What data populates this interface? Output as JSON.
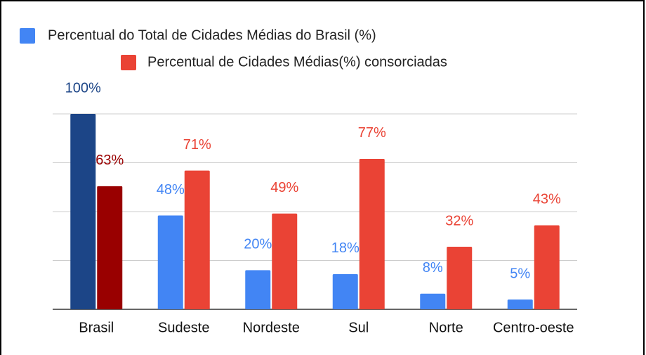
{
  "chart_data": {
    "type": "bar",
    "categories": [
      "Brasil",
      "Sudeste",
      "Nordeste",
      "Sul",
      "Norte",
      "Centro-oeste"
    ],
    "series": [
      {
        "name": "Percentual do Total de Cidades Médias do Brasil (%)",
        "color": "#4285f4",
        "colors": [
          "#1c4587",
          "#4285f4",
          "#4285f4",
          "#4285f4",
          "#4285f4",
          "#4285f4"
        ],
        "values": [
          100,
          48,
          20,
          18,
          8,
          5
        ],
        "value_labels": [
          "100%",
          "48%",
          "20%",
          "18%",
          "8%",
          "5%"
        ]
      },
      {
        "name": "Percentual de Cidades Médias(%) consorciadas",
        "color": "#ea4335",
        "colors": [
          "#990000",
          "#ea4335",
          "#ea4335",
          "#ea4335",
          "#ea4335",
          "#ea4335"
        ],
        "values": [
          63,
          71,
          49,
          77,
          32,
          43
        ],
        "value_labels": [
          "63%",
          "71%",
          "49%",
          "77%",
          "32%",
          "43%"
        ]
      }
    ],
    "ylim": [
      0,
      100
    ],
    "yticks": [
      0,
      25,
      50,
      75,
      100
    ],
    "grid": true
  }
}
